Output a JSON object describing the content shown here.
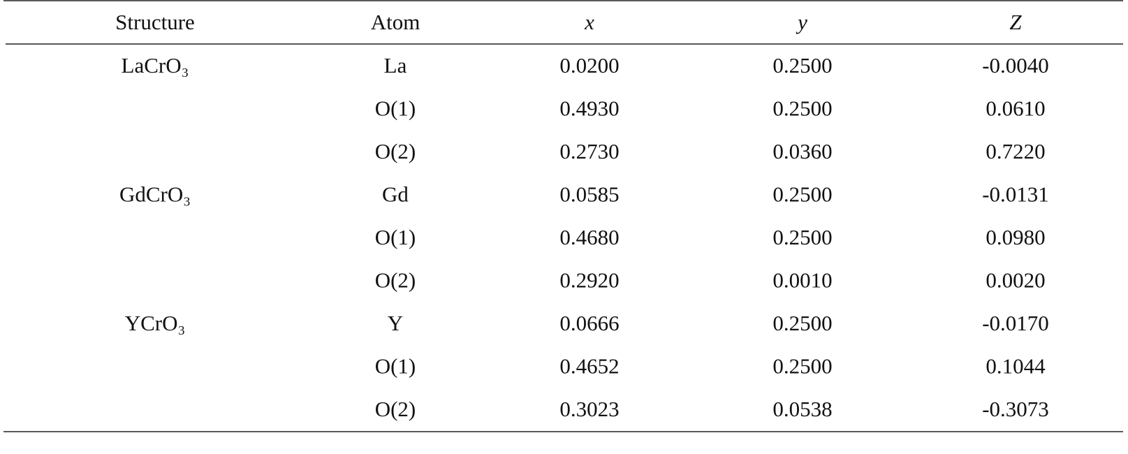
{
  "header": [
    "Structure",
    "Atom",
    "x",
    "y",
    "Z"
  ],
  "structures": [
    {
      "name": "LaCrO₃",
      "atoms": [
        {
          "atom": "La",
          "x": "0.0200",
          "y": "0.2500",
          "z": "-0.0040"
        },
        {
          "atom": "O(1)",
          "x": "0.4930",
          "y": "0.2500",
          "z": "0.0610"
        },
        {
          "atom": "O(2)",
          "x": "0.2730",
          "y": "0.0360",
          "z": "0.7220"
        }
      ]
    },
    {
      "name": "GdCrO₃",
      "atoms": [
        {
          "atom": "Gd",
          "x": "0.0585",
          "y": "0.2500",
          "z": "-0.0131"
        },
        {
          "atom": "O(1)",
          "x": "0.4680",
          "y": "0.2500",
          "z": "0.0980"
        },
        {
          "atom": "O(2)",
          "x": "0.2920",
          "y": "0.0010",
          "z": "0.0020"
        }
      ]
    },
    {
      "name": "YCrO₃",
      "atoms": [
        {
          "atom": "Y",
          "x": "0.0666",
          "y": "0.2500",
          "z": "-0.0170"
        },
        {
          "atom": "O(1)",
          "x": "0.4652",
          "y": "0.2500",
          "z": "0.1044"
        },
        {
          "atom": "O(2)",
          "x": "0.3023",
          "y": "0.0538",
          "z": "-0.3073"
        }
      ]
    }
  ]
}
